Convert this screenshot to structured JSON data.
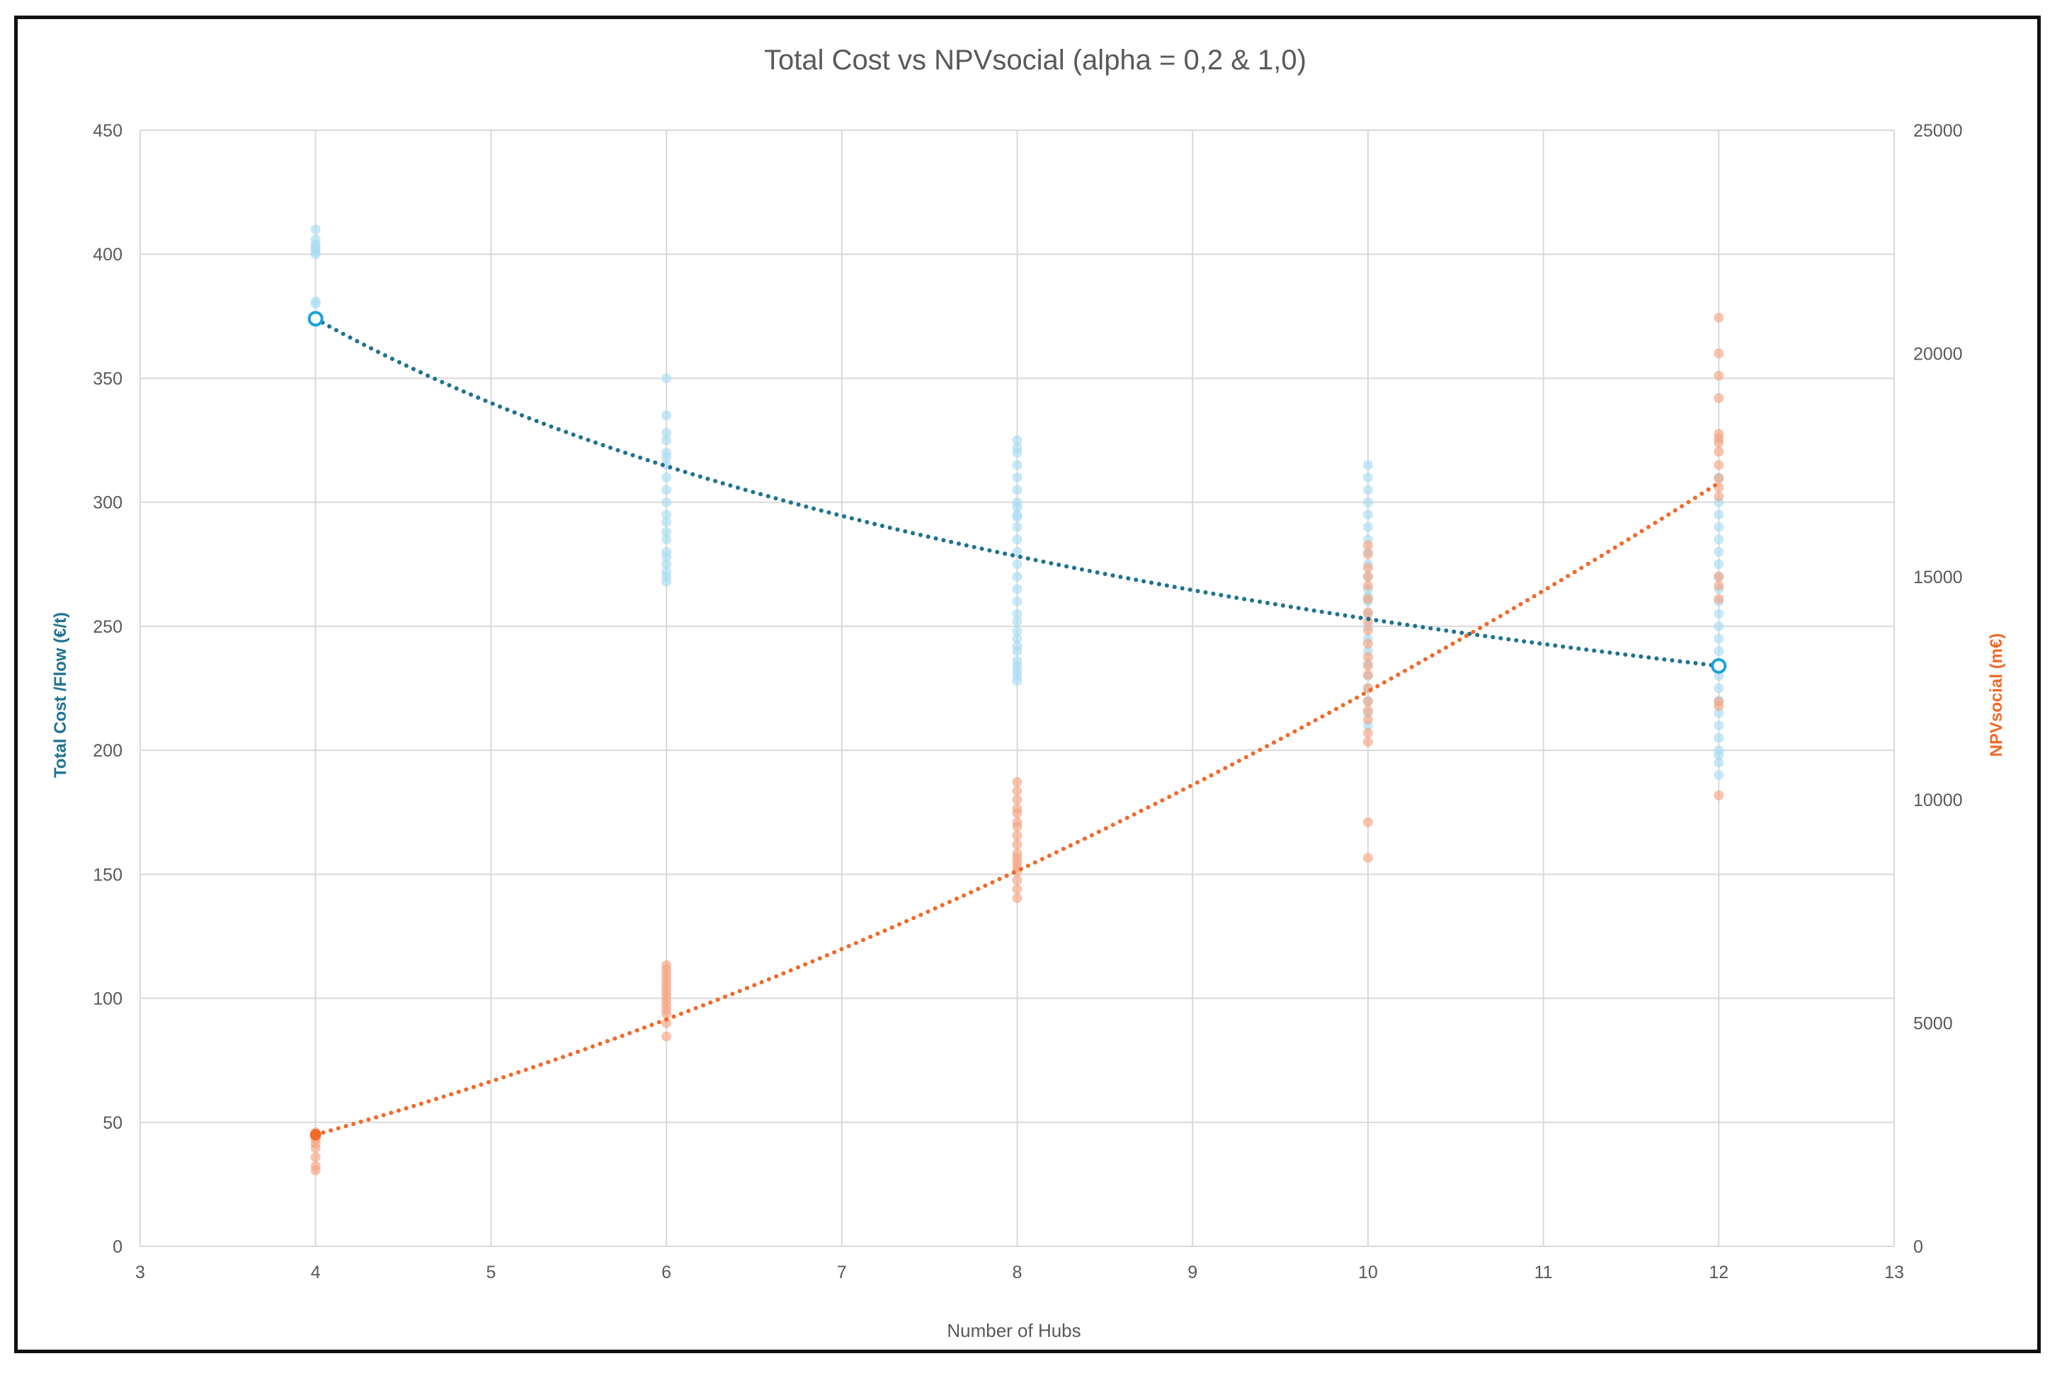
{
  "chart_data": {
    "type": "scatter",
    "title": "Total Cost vs NPVsocial (alpha = 0,2 & 1,0)",
    "xlabel": "Number of Hubs",
    "ylabel_left": "Total Cost /Flow (€/t)",
    "ylabel_right": "NPVsocial (m€)",
    "xlim": [
      3,
      13
    ],
    "x_ticks": [
      3,
      4,
      5,
      6,
      7,
      8,
      9,
      10,
      11,
      12,
      13
    ],
    "ylim_left": [
      0,
      450
    ],
    "y_ticks_left": [
      0,
      50,
      100,
      150,
      200,
      250,
      300,
      350,
      400,
      450
    ],
    "ylim_right": [
      0,
      25000
    ],
    "y_ticks_right": [
      0,
      5000,
      10000,
      15000,
      20000,
      25000
    ],
    "grid": true,
    "colors": {
      "cost_points": "#a9dcf2",
      "cost_trend": "#1f7391",
      "cost_marker": "#1aa3d9",
      "npv_points": "#f4a582",
      "npv_trend": "#f06a2a",
      "left_label": "#1f7391",
      "right_label": "#f06a2a"
    },
    "series": [
      {
        "axis": "left",
        "points": [
          {
            "x": 4,
            "y": [
              374,
              375,
              380,
              381,
              400,
              401,
              402,
              403,
              404,
              406,
              410
            ]
          },
          {
            "x": 6,
            "y": [
              268,
              270,
              272,
              275,
              278,
              280,
              285,
              288,
              292,
              295,
              300,
              305,
              310,
              315,
              318,
              320,
              325,
              328,
              335,
              350
            ]
          },
          {
            "x": 8,
            "y": [
              228,
              230,
              232,
              234,
              236,
              240,
              242,
              245,
              248,
              252,
              255,
              260,
              265,
              270,
              275,
              280,
              285,
              290,
              294,
              295,
              298,
              300,
              305,
              310,
              315,
              320,
              322,
              325
            ]
          },
          {
            "x": 10,
            "y": [
              210,
              215,
              220,
              225,
              230,
              235,
              240,
              245,
              250,
              255,
              260,
              262,
              265,
              270,
              275,
              280,
              285,
              290,
              295,
              300,
              305,
              310,
              315
            ]
          },
          {
            "x": 12,
            "y": [
              190,
              195,
              198,
              200,
              205,
              210,
              215,
              220,
              225,
              230,
              234,
              235,
              240,
              245,
              250,
              255,
              260,
              265,
              270,
              275,
              280,
              285,
              290,
              295,
              300,
              310
            ]
          }
        ],
        "trend": [
          [
            4,
            374
          ],
          [
            12,
            234
          ]
        ]
      },
      {
        "axis": "right",
        "points": [
          {
            "x": 4,
            "y": [
              1700,
              1800,
              2000,
              2200,
              2300,
              2400,
              2450,
              2500,
              2550
            ]
          },
          {
            "x": 6,
            "y": [
              4700,
              5000,
              5200,
              5300,
              5400,
              5500,
              5600,
              5700,
              5800,
              5900,
              6000,
              6100,
              6200,
              6300
            ]
          },
          {
            "x": 8,
            "y": [
              7800,
              8000,
              8200,
              8400,
              8500,
              8600,
              8700,
              8800,
              9000,
              9200,
              9400,
              9500,
              9700,
              9800,
              10000,
              10200,
              10400
            ]
          },
          {
            "x": 10,
            "y": [
              8700,
              9500,
              11300,
              11500,
              11800,
              12000,
              12200,
              12500,
              12800,
              13000,
              13200,
              13500,
              13800,
              14000,
              14200,
              14500,
              14800,
              15000,
              15200,
              15500,
              15700
            ]
          },
          {
            "x": 12,
            "y": [
              10100,
              12100,
              12200,
              14500,
              14800,
              15000,
              16800,
              17000,
              17200,
              17500,
              17800,
              18000,
              18100,
              18200,
              19000,
              19500,
              20000,
              20800
            ]
          }
        ],
        "trend": [
          [
            4,
            2500
          ],
          [
            12,
            17100
          ]
        ]
      }
    ]
  }
}
